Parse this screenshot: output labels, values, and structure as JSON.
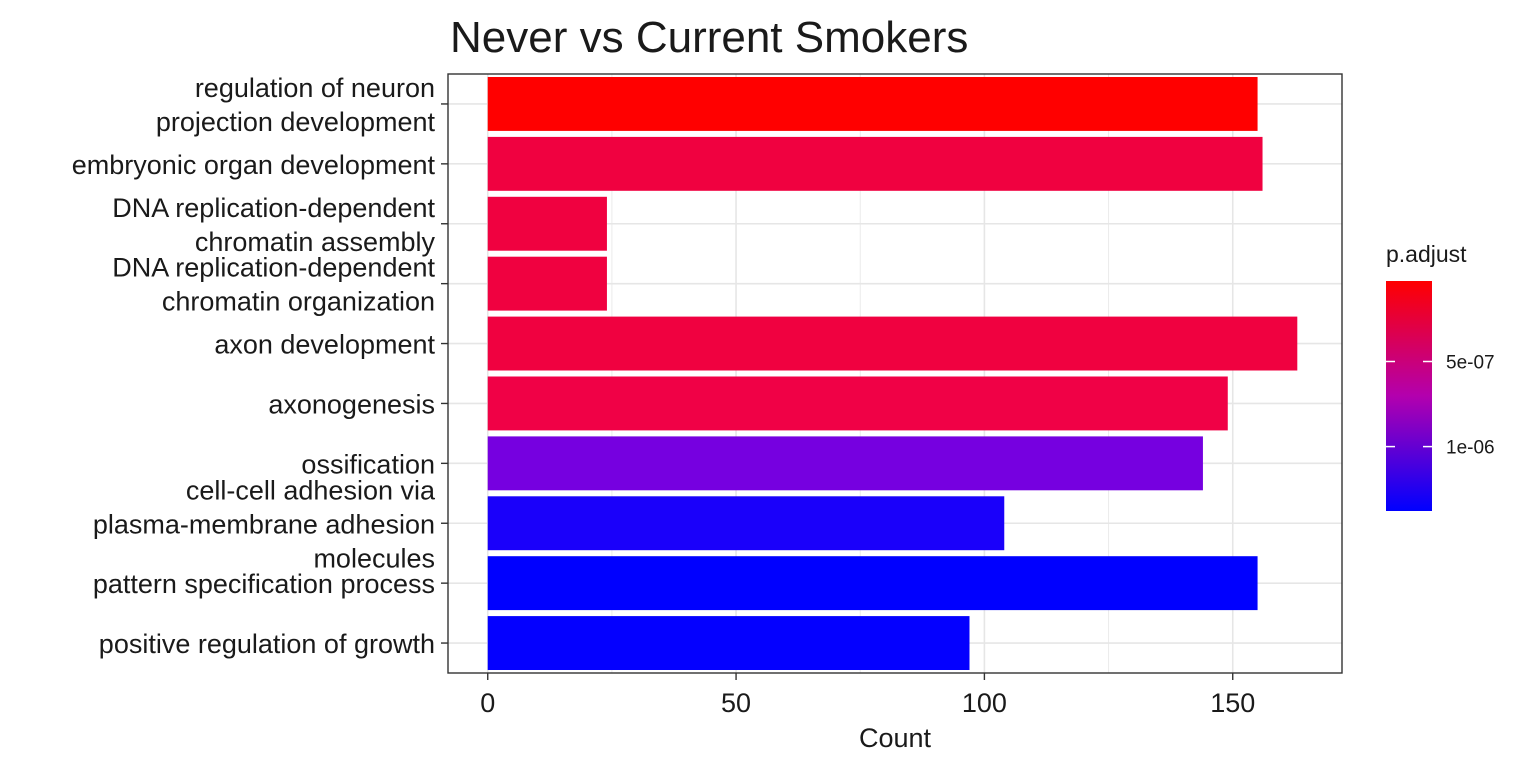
{
  "chart_data": {
    "type": "bar",
    "orientation": "horizontal",
    "title": "Never vs Current Smokers",
    "xlabel": "Count",
    "ylabel": "",
    "xlim": [
      -8,
      172
    ],
    "x_ticks": [
      0,
      50,
      100,
      150
    ],
    "grid": true,
    "categories": [
      {
        "lines": [
          "regulation of neuron",
          "projection development"
        ],
        "value": 155,
        "color": "#FF0000"
      },
      {
        "lines": [
          "embryonic organ development"
        ],
        "value": 156,
        "color": "#F00140"
      },
      {
        "lines": [
          "DNA replication-dependent",
          "chromatin assembly"
        ],
        "value": 24,
        "color": "#F00140"
      },
      {
        "lines": [
          "DNA replication-dependent",
          "chromatin organization"
        ],
        "value": 24,
        "color": "#F00140"
      },
      {
        "lines": [
          "axon development"
        ],
        "value": 163,
        "color": "#F00140"
      },
      {
        "lines": [
          "axonogenesis"
        ],
        "value": 149,
        "color": "#F00146"
      },
      {
        "lines": [
          "ossification"
        ],
        "value": 144,
        "color": "#7600E0"
      },
      {
        "lines": [
          "cell-cell adhesion via",
          "plasma-membrane adhesion",
          "molecules"
        ],
        "value": 104,
        "color": "#1A00FA"
      },
      {
        "lines": [
          "pattern specification process"
        ],
        "value": 155,
        "color": "#0000FF"
      },
      {
        "lines": [
          "positive regulation of growth"
        ],
        "value": 97,
        "color": "#0400FF"
      }
    ],
    "legend": {
      "title": "p.adjust",
      "placement": "right",
      "gradient_top": "#FF0000",
      "gradient_mid": "#B300AE",
      "gradient_bottom": "#0000FF",
      "ticks": [
        {
          "label": "5e-07",
          "fraction_from_top": 0.35
        },
        {
          "label": "1e-06",
          "fraction_from_top": 0.72
        }
      ]
    }
  }
}
